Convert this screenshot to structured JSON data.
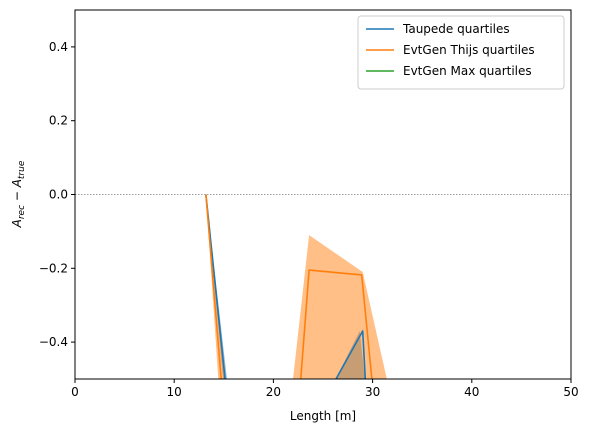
{
  "chart_data": {
    "type": "line",
    "xlabel": "Length [m]",
    "ylabel": "A_rec − A_true",
    "xlim": [
      0,
      50
    ],
    "ylim": [
      -0.5,
      0.5
    ],
    "xticks": [
      0,
      10,
      20,
      30,
      40,
      50
    ],
    "yticks": [
      -0.4,
      -0.2,
      0.0,
      0.2,
      0.4
    ],
    "xtick_labels": [
      "0",
      "10",
      "20",
      "30",
      "40",
      "50"
    ],
    "ytick_labels": [
      "−0.4",
      "−0.2",
      "0.0",
      "0.2",
      "0.4"
    ],
    "reference_line": {
      "y": 0.0,
      "style": "dotted",
      "color": "#808080"
    },
    "legend_position": "top-right",
    "series": [
      {
        "name": "Taupede quartiles",
        "color": "#1f77b4",
        "median": [
          [
            13.2,
            0.0
          ],
          [
            15.2,
            -0.52
          ],
          [
            25.9,
            -0.52
          ],
          [
            29.0,
            -0.37
          ],
          [
            29.3,
            -0.52
          ]
        ],
        "band": [
          [
            [
              13.2,
              0.0
            ],
            [
              15.0,
              -0.52
            ],
            [
              15.4,
              -0.52
            ]
          ],
          [
            [
              25.9,
              -0.52
            ],
            [
              28.7,
              -0.37
            ],
            [
              29.3,
              -0.52
            ]
          ]
        ]
      },
      {
        "name": "EvtGen Thijs quartiles",
        "color": "#ff7f0e",
        "median": [
          [
            13.2,
            0.0
          ],
          [
            14.8,
            -0.52
          ],
          [
            22.7,
            -0.52
          ],
          [
            23.6,
            -0.205
          ],
          [
            28.9,
            -0.218
          ],
          [
            30.0,
            -0.52
          ]
        ],
        "band": [
          [
            [
              13.2,
              0.0
            ],
            [
              14.5,
              -0.52
            ],
            [
              15.3,
              -0.52
            ]
          ],
          [
            [
              21.9,
              -0.52
            ],
            [
              23.6,
              -0.11
            ],
            [
              29.0,
              -0.21
            ],
            [
              31.6,
              -0.52
            ]
          ]
        ]
      },
      {
        "name": "EvtGen Max quartiles",
        "color": "#2ca02c",
        "median": [],
        "band": []
      }
    ]
  }
}
